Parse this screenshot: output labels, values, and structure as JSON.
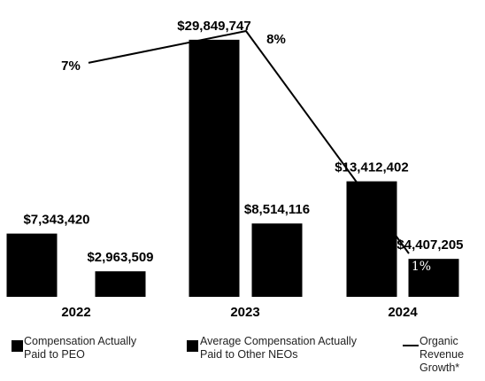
{
  "chart_data": {
    "type": "bar",
    "categories": [
      "2022",
      "2023",
      "2024"
    ],
    "series": [
      {
        "name": "Compensation Actually Paid to PEO",
        "color": "#000000",
        "values": [
          7343420,
          29849747,
          13412402
        ],
        "value_labels": [
          "$7,343,420",
          "$29,849,747",
          "$13,412,402"
        ]
      },
      {
        "name": "Average Compensation Actually Paid to Other NEOs",
        "color": "#000000",
        "values": [
          2963509,
          8514116,
          4407205
        ],
        "value_labels": [
          "$2,963,509",
          "$8,514,116",
          "$4,407,205"
        ]
      },
      {
        "name": "Organic Revenue Growth*",
        "type": "line",
        "axis": "y2",
        "color": "#000000",
        "values": [
          7,
          8,
          1
        ],
        "value_labels": [
          "7%",
          "8%",
          "1%"
        ]
      }
    ],
    "ylim": [
      0,
      30000000
    ],
    "y2lim": [
      0,
      8
    ]
  }
}
